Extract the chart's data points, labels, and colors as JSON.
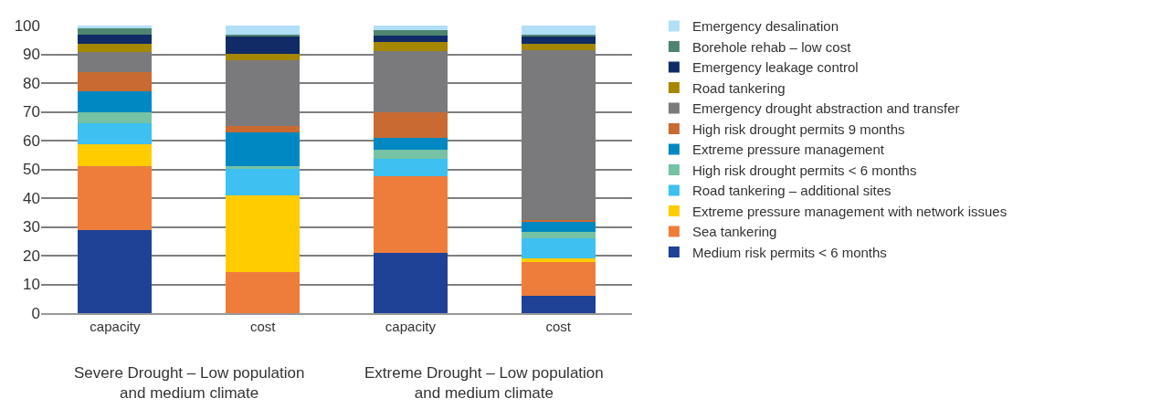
{
  "chart_data": {
    "type": "bar",
    "stacked": true,
    "categories": [
      "capacity",
      "cost",
      "capacity",
      "cost"
    ],
    "series": [
      {
        "name": "Medium risk permits < 6 months",
        "color": "#1f4196",
        "values": [
          29.0,
          0,
          21.0,
          6.1
        ]
      },
      {
        "name": "Sea tankering",
        "color": "#ee7d3b",
        "values": [
          22.0,
          14.3,
          26.6,
          11.8
        ]
      },
      {
        "name": "Extreme pressure management with network issues",
        "color": "#ffcc00",
        "values": [
          7.8,
          26.8,
          0,
          1.2
        ]
      },
      {
        "name": "Road tankering – additional sites",
        "color": "#3ec0f0",
        "values": [
          7.1,
          9.0,
          6.0,
          6.9
        ]
      },
      {
        "name": "High risk drought permits < 6 months",
        "color": "#76c2a4",
        "values": [
          3.9,
          1.0,
          3.3,
          2.1
        ]
      },
      {
        "name": "Extreme pressure management",
        "color": "#0088c2",
        "values": [
          7.3,
          11.8,
          4.2,
          3.7
        ]
      },
      {
        "name": "High risk drought permits 9 months",
        "color": "#c86a32",
        "values": [
          6.8,
          2.1,
          8.8,
          0.6
        ]
      },
      {
        "name": "Emergency drought abstraction and transfer",
        "color": "#7a7a7c",
        "values": [
          7.0,
          22.9,
          21.1,
          59.0
        ]
      },
      {
        "name": "Road tankering",
        "color": "#a58800",
        "values": [
          2.8,
          2.2,
          3.4,
          2.1
        ]
      },
      {
        "name": "Emergency leakage control",
        "color": "#112b66",
        "values": [
          3.1,
          6.0,
          2.2,
          2.8
        ]
      },
      {
        "name": "Borehole rehab – low cost",
        "color": "#4e8470",
        "values": [
          2.3,
          0.8,
          1.9,
          0.6
        ]
      },
      {
        "name": "Emergency desalination",
        "color": "#b0dff7",
        "values": [
          0.9,
          3.1,
          1.5,
          3.1
        ]
      }
    ],
    "ylim": [
      0,
      100
    ],
    "yticks": [
      0,
      10,
      20,
      30,
      40,
      50,
      60,
      70,
      80,
      90,
      100
    ],
    "grid": "y",
    "legend": "right",
    "annotations": [
      "Severe Drought – Low population\nand medium climate",
      "Extreme Drought – Low population\nand medium climate"
    ]
  }
}
